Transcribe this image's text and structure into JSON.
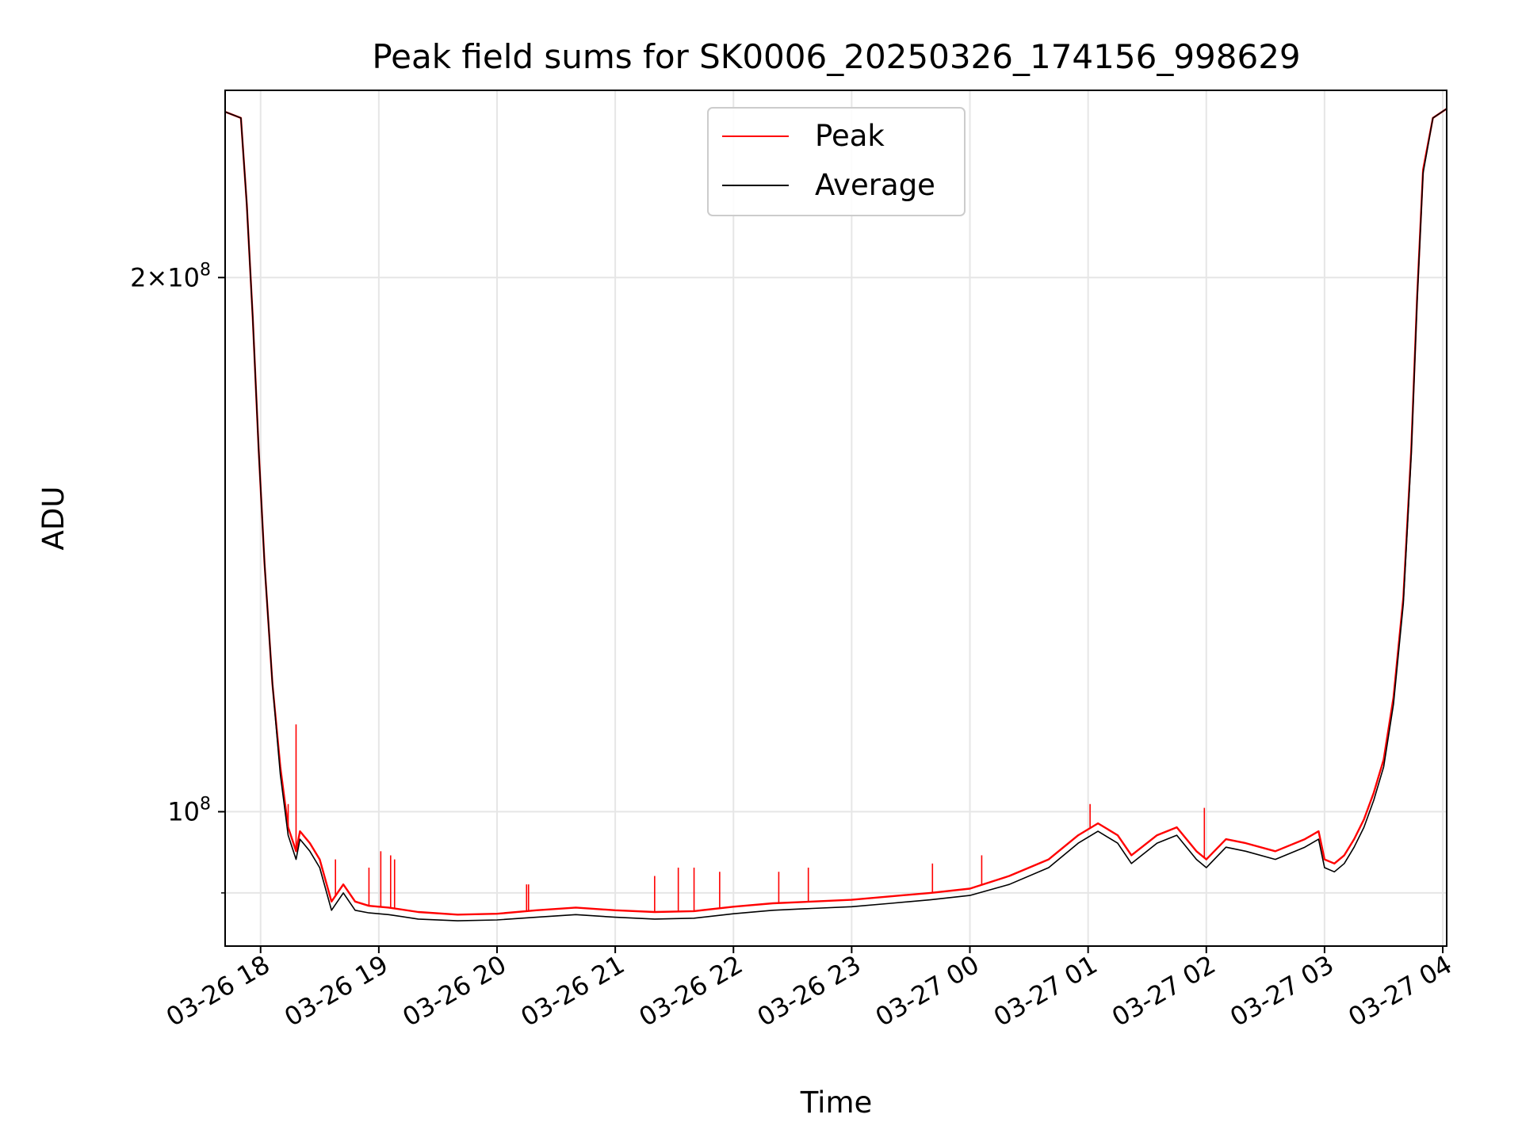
{
  "chart_data": {
    "type": "line",
    "title": "Peak field sums for SK0006_20250326_174156_998629",
    "xlabel": "Time",
    "ylabel": "ADU",
    "yscale": "log",
    "grid": true,
    "legend_placement": "upper-center",
    "x_ticks": [
      "03-26 18",
      "03-26 19",
      "03-26 20",
      "03-26 21",
      "03-26 22",
      "03-26 23",
      "03-27 00",
      "03-27 01",
      "03-27 02",
      "03-27 03",
      "03-27 04"
    ],
    "y_ticks": [
      {
        "value": 100000000,
        "base": "10",
        "exp": "8",
        "mantissa": ""
      },
      {
        "value": 200000000,
        "base": "10",
        "exp": "8",
        "mantissa": "2×"
      }
    ],
    "xlim": [
      "2025-03-26 17:42",
      "2025-03-27 04:02"
    ],
    "ylim": [
      84000000,
      255000000
    ],
    "series": [
      {
        "name": "Peak",
        "color": "#ff0000",
        "points": [
          [
            "2025-03-26 17:42",
            248000000
          ],
          [
            "2025-03-26 17:50",
            246000000
          ],
          [
            "2025-03-26 17:53",
            220000000
          ],
          [
            "2025-03-26 17:56",
            190000000
          ],
          [
            "2025-03-26 17:59",
            160000000
          ],
          [
            "2025-03-26 18:02",
            138000000
          ],
          [
            "2025-03-26 18:06",
            118000000
          ],
          [
            "2025-03-26 18:10",
            106000000
          ],
          [
            "2025-03-26 18:14",
            98000000
          ],
          [
            "2025-03-26 18:18",
            95000000
          ],
          [
            "2025-03-26 18:20",
            97500000
          ],
          [
            "2025-03-26 18:25",
            96000000
          ],
          [
            "2025-03-26 18:30",
            94000000
          ],
          [
            "2025-03-26 18:36",
            89000000
          ],
          [
            "2025-03-26 18:42",
            91000000
          ],
          [
            "2025-03-26 18:48",
            89000000
          ],
          [
            "2025-03-26 18:55",
            88500000
          ],
          [
            "2025-03-26 19:05",
            88300000
          ],
          [
            "2025-03-26 19:20",
            87800000
          ],
          [
            "2025-03-26 19:40",
            87500000
          ],
          [
            "2025-03-26 20:00",
            87600000
          ],
          [
            "2025-03-26 20:20",
            88000000
          ],
          [
            "2025-03-26 20:40",
            88300000
          ],
          [
            "2025-03-26 21:00",
            88000000
          ],
          [
            "2025-03-26 21:20",
            87800000
          ],
          [
            "2025-03-26 21:40",
            87900000
          ],
          [
            "2025-03-26 22:00",
            88400000
          ],
          [
            "2025-03-26 22:20",
            88800000
          ],
          [
            "2025-03-26 22:40",
            89000000
          ],
          [
            "2025-03-26 23:00",
            89200000
          ],
          [
            "2025-03-26 23:20",
            89600000
          ],
          [
            "2025-03-26 23:40",
            90000000
          ],
          [
            "2025-03-27 00:00",
            90500000
          ],
          [
            "2025-03-27 00:20",
            92000000
          ],
          [
            "2025-03-27 00:40",
            94000000
          ],
          [
            "2025-03-27 00:55",
            97000000
          ],
          [
            "2025-03-27 01:05",
            98500000
          ],
          [
            "2025-03-27 01:15",
            97000000
          ],
          [
            "2025-03-27 01:22",
            94500000
          ],
          [
            "2025-03-27 01:35",
            97000000
          ],
          [
            "2025-03-27 01:45",
            98000000
          ],
          [
            "2025-03-27 01:55",
            95000000
          ],
          [
            "2025-03-27 02:00",
            94000000
          ],
          [
            "2025-03-27 02:10",
            96500000
          ],
          [
            "2025-03-27 02:20",
            96000000
          ],
          [
            "2025-03-27 02:35",
            95000000
          ],
          [
            "2025-03-27 02:50",
            96500000
          ],
          [
            "2025-03-27 02:57",
            97500000
          ],
          [
            "2025-03-27 03:00",
            94000000
          ],
          [
            "2025-03-27 03:05",
            93500000
          ],
          [
            "2025-03-27 03:10",
            94500000
          ],
          [
            "2025-03-27 03:15",
            96500000
          ],
          [
            "2025-03-27 03:20",
            99000000
          ],
          [
            "2025-03-27 03:25",
            102500000
          ],
          [
            "2025-03-27 03:30",
            107000000
          ],
          [
            "2025-03-27 03:35",
            116000000
          ],
          [
            "2025-03-27 03:40",
            132000000
          ],
          [
            "2025-03-27 03:44",
            160000000
          ],
          [
            "2025-03-27 03:47",
            195000000
          ],
          [
            "2025-03-27 03:50",
            230000000
          ],
          [
            "2025-03-27 03:55",
            246000000
          ],
          [
            "2025-03-27 04:02",
            249000000
          ]
        ]
      },
      {
        "name": "Average",
        "color": "#000000",
        "points": [
          [
            "2025-03-26 17:42",
            248000000
          ],
          [
            "2025-03-26 17:50",
            246000000
          ],
          [
            "2025-03-26 17:53",
            220000000
          ],
          [
            "2025-03-26 17:56",
            190000000
          ],
          [
            "2025-03-26 17:59",
            160000000
          ],
          [
            "2025-03-26 18:02",
            138000000
          ],
          [
            "2025-03-26 18:06",
            118000000
          ],
          [
            "2025-03-26 18:10",
            105000000
          ],
          [
            "2025-03-26 18:14",
            97000000
          ],
          [
            "2025-03-26 18:18",
            94000000
          ],
          [
            "2025-03-26 18:20",
            96500000
          ],
          [
            "2025-03-26 18:25",
            95000000
          ],
          [
            "2025-03-26 18:30",
            93000000
          ],
          [
            "2025-03-26 18:36",
            88000000
          ],
          [
            "2025-03-26 18:42",
            90000000
          ],
          [
            "2025-03-26 18:48",
            88000000
          ],
          [
            "2025-03-26 18:55",
            87700000
          ],
          [
            "2025-03-26 19:05",
            87500000
          ],
          [
            "2025-03-26 19:20",
            87000000
          ],
          [
            "2025-03-26 19:40",
            86800000
          ],
          [
            "2025-03-26 20:00",
            86900000
          ],
          [
            "2025-03-26 20:20",
            87200000
          ],
          [
            "2025-03-26 20:40",
            87500000
          ],
          [
            "2025-03-26 21:00",
            87200000
          ],
          [
            "2025-03-26 21:20",
            87000000
          ],
          [
            "2025-03-26 21:40",
            87100000
          ],
          [
            "2025-03-26 22:00",
            87600000
          ],
          [
            "2025-03-26 22:20",
            88000000
          ],
          [
            "2025-03-26 22:40",
            88200000
          ],
          [
            "2025-03-26 23:00",
            88400000
          ],
          [
            "2025-03-26 23:20",
            88800000
          ],
          [
            "2025-03-26 23:40",
            89200000
          ],
          [
            "2025-03-27 00:00",
            89700000
          ],
          [
            "2025-03-27 00:20",
            91000000
          ],
          [
            "2025-03-27 00:40",
            93000000
          ],
          [
            "2025-03-27 00:55",
            96000000
          ],
          [
            "2025-03-27 01:05",
            97500000
          ],
          [
            "2025-03-27 01:15",
            96000000
          ],
          [
            "2025-03-27 01:22",
            93500000
          ],
          [
            "2025-03-27 01:35",
            96000000
          ],
          [
            "2025-03-27 01:45",
            97000000
          ],
          [
            "2025-03-27 01:55",
            94000000
          ],
          [
            "2025-03-27 02:00",
            93000000
          ],
          [
            "2025-03-27 02:10",
            95500000
          ],
          [
            "2025-03-27 02:20",
            95000000
          ],
          [
            "2025-03-27 02:35",
            94000000
          ],
          [
            "2025-03-27 02:50",
            95500000
          ],
          [
            "2025-03-27 02:57",
            96500000
          ],
          [
            "2025-03-27 03:00",
            93000000
          ],
          [
            "2025-03-27 03:05",
            92500000
          ],
          [
            "2025-03-27 03:10",
            93500000
          ],
          [
            "2025-03-27 03:15",
            95500000
          ],
          [
            "2025-03-27 03:20",
            98000000
          ],
          [
            "2025-03-27 03:25",
            101500000
          ],
          [
            "2025-03-27 03:30",
            106000000
          ],
          [
            "2025-03-27 03:35",
            115000000
          ],
          [
            "2025-03-27 03:40",
            131000000
          ],
          [
            "2025-03-27 03:44",
            159000000
          ],
          [
            "2025-03-27 03:47",
            194000000
          ],
          [
            "2025-03-27 03:50",
            229000000
          ],
          [
            "2025-03-27 03:55",
            246000000
          ],
          [
            "2025-03-27 04:02",
            249000000
          ]
        ]
      }
    ],
    "spikes": [
      [
        "2025-03-26 18:14",
        101000000
      ],
      [
        "2025-03-26 18:18",
        112000000
      ],
      [
        "2025-03-26 18:38",
        94000000
      ],
      [
        "2025-03-26 18:55",
        93000000
      ],
      [
        "2025-03-26 19:01",
        95000000
      ],
      [
        "2025-03-26 19:06",
        94500000
      ],
      [
        "2025-03-26 19:08",
        94000000
      ],
      [
        "2025-03-26 20:15",
        91000000
      ],
      [
        "2025-03-26 20:16",
        91000000
      ],
      [
        "2025-03-26 21:20",
        92000000
      ],
      [
        "2025-03-26 21:32",
        93000000
      ],
      [
        "2025-03-26 21:40",
        93000000
      ],
      [
        "2025-03-26 21:53",
        92500000
      ],
      [
        "2025-03-26 22:23",
        92500000
      ],
      [
        "2025-03-26 22:38",
        93000000
      ],
      [
        "2025-03-26 23:41",
        93500000
      ],
      [
        "2025-03-27 00:06",
        94500000
      ],
      [
        "2025-03-27 01:01",
        101000000
      ],
      [
        "2025-03-27 01:59",
        100500000
      ]
    ]
  }
}
